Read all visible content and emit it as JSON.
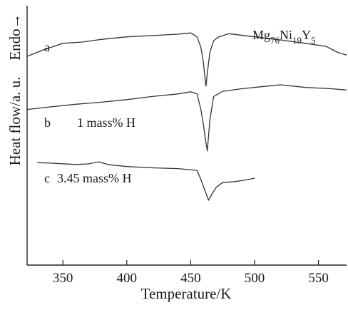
{
  "chart_data": {
    "type": "line",
    "title": "",
    "xlabel": "Temperature/K",
    "ylabel": "Heat flow/a. u.",
    "y_direction_label": "Endo→",
    "xlim": [
      322,
      572
    ],
    "x_ticks": [
      350,
      400,
      450,
      500,
      550
    ],
    "x_tick_labels": [
      "350",
      "400",
      "450",
      "500",
      "550"
    ],
    "y_ticks_shown": false,
    "grid": false,
    "legend": "none",
    "annotations": [
      {
        "letter": "a",
        "text": ""
      },
      {
        "letter": "b",
        "text": "1 mass% H"
      },
      {
        "letter": "c",
        "text": "3.45 mass% H"
      }
    ],
    "composition": {
      "base": "Mg",
      "sub1": "76",
      "el2": "Ni",
      "sub2": "19",
      "el3": "Y",
      "sub3": "5"
    },
    "series": [
      {
        "id": "a",
        "x": [
          322,
          335,
          350,
          365,
          380,
          400,
          420,
          440,
          450,
          455,
          458,
          460,
          461,
          462,
          463,
          465,
          468,
          472,
          480,
          500,
          520,
          540,
          556,
          565,
          572
        ],
        "y": [
          0.805,
          0.83,
          0.855,
          0.86,
          0.87,
          0.88,
          0.885,
          0.89,
          0.895,
          0.88,
          0.84,
          0.78,
          0.73,
          0.69,
          0.74,
          0.82,
          0.865,
          0.88,
          0.892,
          0.88,
          0.868,
          0.855,
          0.843,
          0.82,
          0.81
        ]
      },
      {
        "id": "b",
        "x": [
          322,
          340,
          360,
          380,
          400,
          420,
          440,
          450,
          455,
          458,
          460,
          462,
          463,
          465,
          468,
          475,
          490,
          510,
          520,
          540,
          560,
          572
        ],
        "y": [
          0.6,
          0.61,
          0.62,
          0.628,
          0.638,
          0.65,
          0.66,
          0.668,
          0.66,
          0.6,
          0.54,
          0.47,
          0.44,
          0.56,
          0.65,
          0.67,
          0.68,
          0.69,
          0.695,
          0.685,
          0.68,
          0.675
        ]
      },
      {
        "id": "c",
        "x": [
          330,
          340,
          360,
          370,
          378,
          385,
          400,
          420,
          440,
          455,
          458,
          461,
          464,
          466,
          470,
          475,
          485,
          495,
          500
        ],
        "y": [
          0.395,
          0.393,
          0.388,
          0.39,
          0.398,
          0.388,
          0.38,
          0.375,
          0.372,
          0.365,
          0.33,
          0.29,
          0.25,
          0.268,
          0.3,
          0.318,
          0.322,
          0.33,
          0.335
        ]
      }
    ]
  }
}
